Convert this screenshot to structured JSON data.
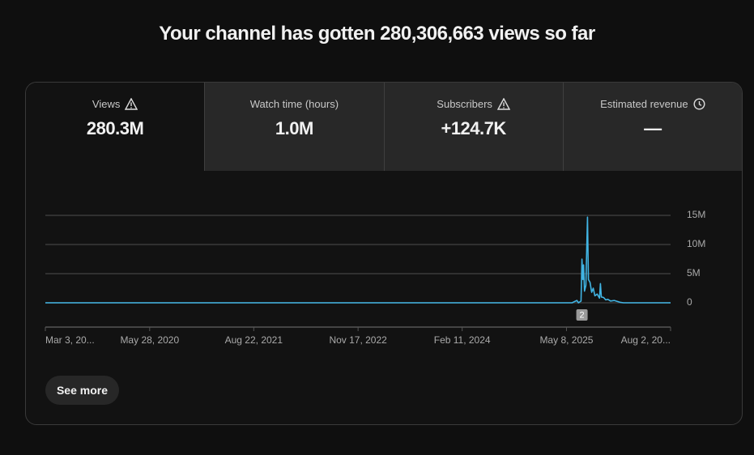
{
  "header": {
    "title": "Your channel has gotten 280,306,663 views so far"
  },
  "tabs": [
    {
      "label": "Views",
      "value": "280.3M"
    },
    {
      "label": "Watch time (hours)",
      "value": "1.0M"
    },
    {
      "label": "Subscribers",
      "value": "+124.7K"
    },
    {
      "label": "Estimated revenue",
      "value": "—"
    }
  ],
  "button": {
    "label": "See more"
  },
  "chart_data": {
    "type": "line",
    "color": "#41b4e3",
    "grid": true,
    "x": [
      "2019-03-03",
      "2025-06-01",
      "2025-06-22",
      "2025-06-29",
      "2025-07-10",
      "2025-07-14",
      "2025-07-18",
      "2025-07-21",
      "2025-07-25",
      "2025-07-31",
      "2025-08-07",
      "2025-08-11",
      "2025-08-18",
      "2025-08-25",
      "2025-09-01",
      "2025-09-08",
      "2025-09-18",
      "2025-09-28",
      "2025-10-02",
      "2025-10-06",
      "2025-10-16",
      "2025-10-25",
      "2025-11-03",
      "2025-11-15",
      "2025-12-01",
      "2025-12-25",
      "2026-01-10",
      "2026-08-02"
    ],
    "values": [
      0,
      0,
      400000,
      0,
      300000,
      7500000,
      4000000,
      6500000,
      2000000,
      3000000,
      14700000,
      4000000,
      3500000,
      1800000,
      2500000,
      1200000,
      1500000,
      800000,
      3300000,
      1000000,
      900000,
      500000,
      600000,
      300000,
      400000,
      100000,
      0,
      0
    ],
    "xlim": [
      "2019-03-03",
      "2026-08-02"
    ],
    "xticks": [
      {
        "value": "2019-03-03",
        "label": "Mar 3, 20..."
      },
      {
        "value": "2020-05-28",
        "label": "May 28, 2020"
      },
      {
        "value": "2021-08-22",
        "label": "Aug 22, 2021"
      },
      {
        "value": "2022-11-17",
        "label": "Nov 17, 2022"
      },
      {
        "value": "2024-02-11",
        "label": "Feb 11, 2024"
      },
      {
        "value": "2025-05-08",
        "label": "May 8, 2025"
      },
      {
        "value": "2026-08-02",
        "label": "Aug 2, 20..."
      }
    ],
    "ylim": [
      0,
      15000000
    ],
    "yticks": [
      0,
      {
        "value": 5000000,
        "label": "5M"
      },
      {
        "value": 10000000,
        "label": "10M"
      },
      {
        "value": 15000000,
        "label": "15M"
      }
    ],
    "annotations": [
      {
        "x": "2025-07-14",
        "text": "2"
      }
    ]
  }
}
